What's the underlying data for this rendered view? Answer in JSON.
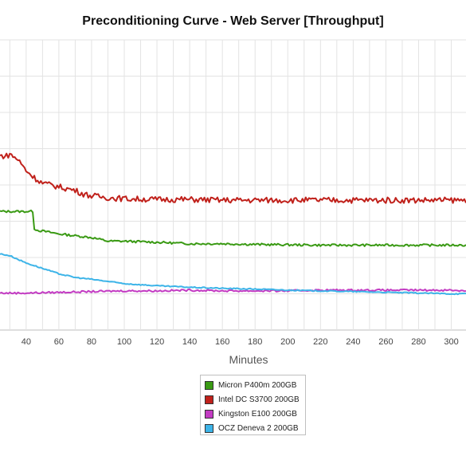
{
  "chart_data": {
    "type": "line",
    "title": "Preconditioning Curve - Web Server [Throughput]",
    "xlabel": "Minutes",
    "ylabel": "",
    "xlim": [
      24,
      309
    ],
    "ylim": [
      0,
      8
    ],
    "x_ticks": [
      40,
      60,
      80,
      100,
      120,
      140,
      160,
      180,
      200,
      220,
      240,
      260,
      280,
      300
    ],
    "grid": true,
    "legend_position": "bottom",
    "series": [
      {
        "name": "Micron P400m 200GB",
        "color": "#3a9a14",
        "x": [
          24,
          30,
          35,
          40,
          44,
          45,
          47,
          50,
          60,
          70,
          80,
          90,
          100,
          120,
          140,
          160,
          180,
          200,
          220,
          240,
          260,
          280,
          300,
          309
        ],
        "values": [
          3.27,
          3.27,
          3.27,
          3.27,
          3.27,
          2.8,
          2.75,
          2.73,
          2.65,
          2.6,
          2.55,
          2.45,
          2.45,
          2.42,
          2.38,
          2.38,
          2.36,
          2.35,
          2.34,
          2.34,
          2.34,
          2.34,
          2.34,
          2.34
        ]
      },
      {
        "name": "Intel DC S3700 200GB",
        "color": "#c0211b",
        "x": [
          24,
          28,
          30,
          35,
          40,
          45,
          50,
          60,
          70,
          75,
          80,
          90,
          100,
          120,
          140,
          160,
          180,
          200,
          220,
          240,
          260,
          280,
          300,
          309
        ],
        "values": [
          4.8,
          4.8,
          4.85,
          4.7,
          4.4,
          4.2,
          4.05,
          3.95,
          3.85,
          3.75,
          3.7,
          3.65,
          3.62,
          3.6,
          3.6,
          3.58,
          3.58,
          3.58,
          3.58,
          3.58,
          3.58,
          3.58,
          3.58,
          3.58
        ]
      },
      {
        "name": "Kingston E100 200GB",
        "color": "#c33cc3",
        "x": [
          24,
          40,
          60,
          80,
          100,
          120,
          140,
          160,
          180,
          200,
          220,
          240,
          260,
          280,
          300,
          309
        ],
        "values": [
          1.02,
          1.02,
          1.04,
          1.06,
          1.08,
          1.08,
          1.1,
          1.08,
          1.08,
          1.08,
          1.1,
          1.1,
          1.1,
          1.1,
          1.1,
          1.08
        ]
      },
      {
        "name": "OCZ Deneva 2 200GB",
        "color": "#3db4e8",
        "x": [
          24,
          30,
          40,
          50,
          60,
          70,
          80,
          100,
          120,
          140,
          160,
          180,
          200,
          220,
          240,
          260,
          280,
          300,
          309
        ],
        "values": [
          2.1,
          2.05,
          1.85,
          1.7,
          1.55,
          1.45,
          1.4,
          1.28,
          1.22,
          1.18,
          1.15,
          1.13,
          1.1,
          1.08,
          1.06,
          1.04,
          1.02,
          1.0,
          1.0
        ]
      }
    ]
  }
}
